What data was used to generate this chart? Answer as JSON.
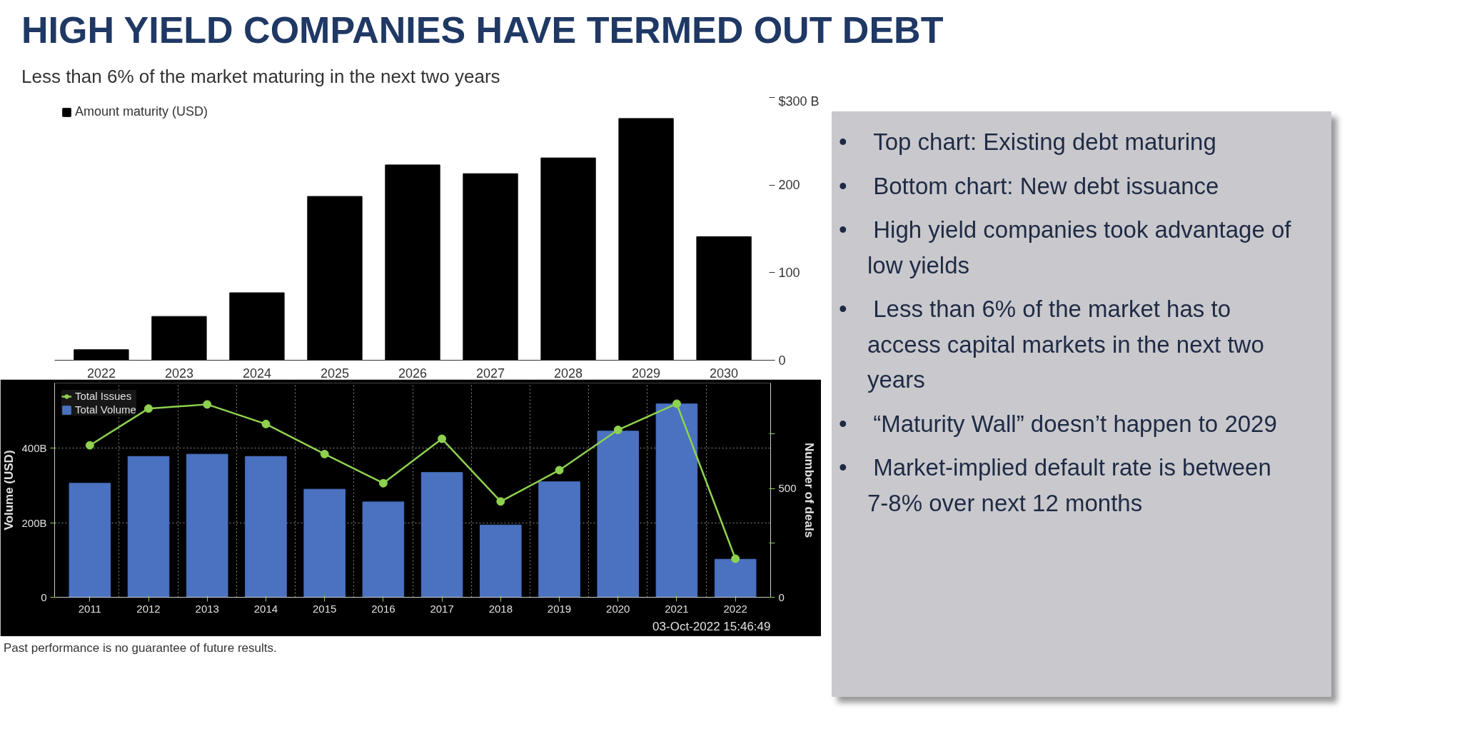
{
  "chart_data": [
    {
      "type": "bar",
      "title": "HIGH YIELD COMPANIES HAVE TERMED OUT DEBT",
      "subtitle": "Less than 6% of the market maturing in the next two years",
      "categories": [
        "2022",
        "2023",
        "2024",
        "2025",
        "2026",
        "2027",
        "2028",
        "2029",
        "2030"
      ],
      "series": [
        {
          "name": "Amount maturity (USD)",
          "color": "#000000",
          "values": [
            12,
            50,
            77,
            187,
            223,
            213,
            231,
            276,
            141
          ]
        }
      ],
      "ylim": [
        0,
        300
      ],
      "yticks": [
        0,
        100,
        200,
        {
          "value": 300,
          "label": "$300 B"
        }
      ],
      "legend": "top left"
    },
    {
      "type": "bar",
      "categories": [
        "2011",
        "2012",
        "2013",
        "2014",
        "2015",
        "2016",
        "2017",
        "2018",
        "2019",
        "2020",
        "2021",
        "2022"
      ],
      "series": [
        {
          "name": "Total Volume",
          "color": "#4a72c0",
          "values": [
            306,
            378,
            384,
            378,
            290,
            256,
            335,
            194,
            310,
            446,
            519,
            102
          ]
        },
        {
          "name": "Total Issues",
          "type": "line",
          "axis": "y2",
          "color": "#8fd14f",
          "marker": "circle",
          "values": [
            698,
            867,
            886,
            796,
            658,
            524,
            728,
            440,
            584,
            769,
            889,
            177
          ]
        }
      ],
      "ylabel": "Volume (USD)",
      "y2label": "Number of deals",
      "ylim": [
        0,
        575
      ],
      "yticks": [
        0,
        {
          "value": 200,
          "label": "200B"
        },
        {
          "value": 400,
          "label": "400B"
        }
      ],
      "y2lim": [
        0,
        984
      ],
      "y2ticks": [
        0,
        {
          "value": 250,
          "label": null
        },
        500,
        {
          "value": 750,
          "label": null
        }
      ],
      "grid": true,
      "legend": "top left",
      "annotations": [
        "03-Oct-2022 15:46:49",
        "Past performance is no guarantee of future results."
      ]
    },
    {
      "type": "other",
      "annotations": [
        "• Top chart: Existing debt maturing",
        "• Bottom chart: New debt issuance",
        "• High yield companies took advantage of low yields",
        "• Less than 6% of the market has to access capital markets in the next two years",
        "• “Maturity Wall” doesn’t happen to 2029",
        "• Market-implied default rate is between 7-8% over next 12 months"
      ]
    }
  ]
}
